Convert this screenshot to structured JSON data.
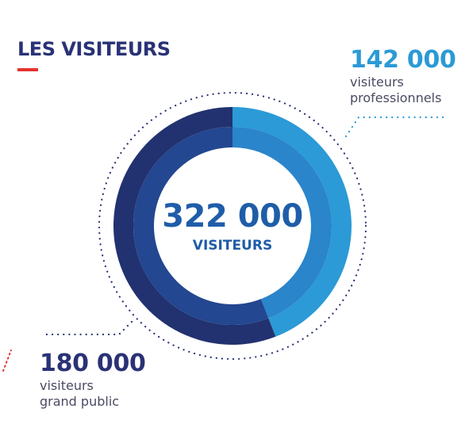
{
  "title": "LES VISITEURS",
  "colors": {
    "title": "#2a3276",
    "accent_red": "#e4332f",
    "professionnels_outer": "#2b9ad6",
    "professionnels_inner": "#2a85cb",
    "grand_public_outer": "#223270",
    "grand_public_inner": "#234790",
    "center_text": "#1f5da8"
  },
  "center": {
    "value": "322 000",
    "label": "VISITEURS"
  },
  "callouts": {
    "professionnels": {
      "value": "142 000",
      "line1": "visiteurs",
      "line2": "professionnels"
    },
    "grand_public": {
      "value": "180 000",
      "line1": "visiteurs",
      "line2": "grand public"
    }
  },
  "chart_data": {
    "type": "pie",
    "variant": "donut",
    "total": 322000,
    "start": "top",
    "direction": "clockwise",
    "slices": [
      {
        "label": "visiteurs professionnels",
        "value": 142000,
        "color": "#2b9ad6",
        "inner_color": "#2a85cb"
      },
      {
        "label": "visiteurs grand public",
        "value": 180000,
        "color": "#223270",
        "inner_color": "#234790"
      }
    ]
  }
}
